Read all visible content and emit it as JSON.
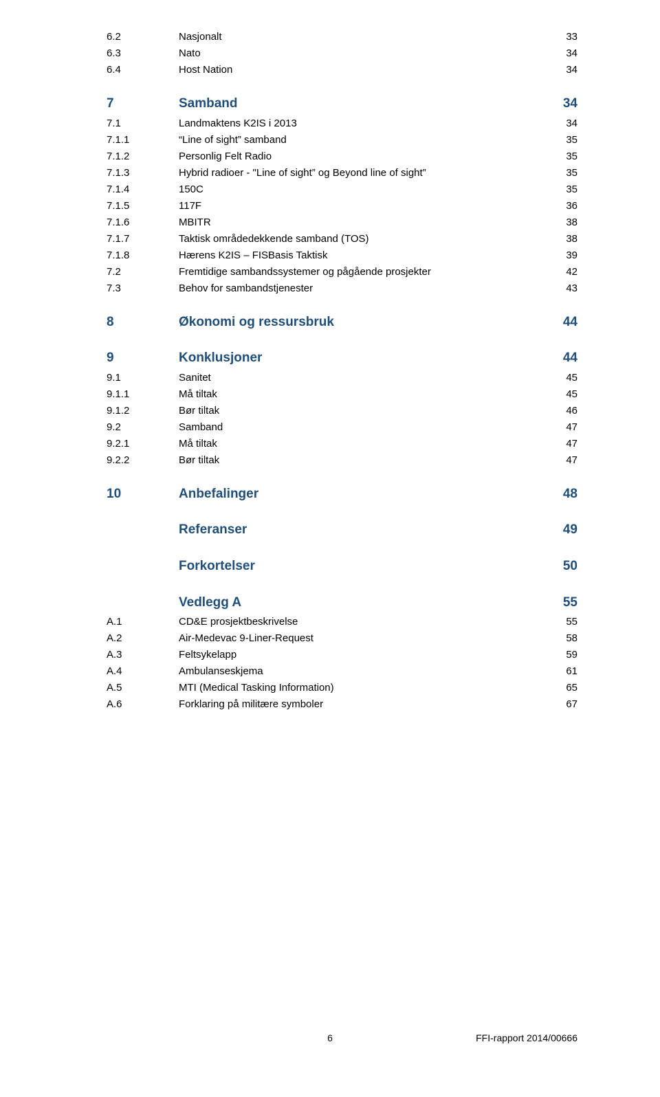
{
  "colors": {
    "heading": "#1f4e79",
    "body": "#000000",
    "background": "#ffffff"
  },
  "typography": {
    "family": "Arial",
    "heading_size_pt": 14,
    "body_size_pt": 11,
    "heading_weight": "bold",
    "body_weight": "normal"
  },
  "toc": [
    {
      "level": 2,
      "num": "6.2",
      "title": "Nasjonalt",
      "page": "33"
    },
    {
      "level": 2,
      "num": "6.3",
      "title": "Nato",
      "page": "34"
    },
    {
      "level": 2,
      "num": "6.4",
      "title": "Host Nation",
      "page": "34"
    },
    {
      "level": 1,
      "num": "7",
      "title": "Samband",
      "page": "34"
    },
    {
      "level": 2,
      "num": "7.1",
      "title": "Landmaktens K2IS i 2013",
      "page": "34"
    },
    {
      "level": 3,
      "num": "7.1.1",
      "title": "“Line of sight” samband",
      "page": "35"
    },
    {
      "level": 3,
      "num": "7.1.2",
      "title": "Personlig Felt Radio",
      "page": "35"
    },
    {
      "level": 3,
      "num": "7.1.3",
      "title": "Hybrid radioer - \"Line of sight” og Beyond line of sight”",
      "page": "35"
    },
    {
      "level": 3,
      "num": "7.1.4",
      "title": "150C",
      "page": "35"
    },
    {
      "level": 3,
      "num": "7.1.5",
      "title": "117F",
      "page": "36"
    },
    {
      "level": 3,
      "num": "7.1.6",
      "title": "MBITR",
      "page": "38"
    },
    {
      "level": 3,
      "num": "7.1.7",
      "title": "Taktisk områdedekkende samband (TOS)",
      "page": "38"
    },
    {
      "level": 3,
      "num": "7.1.8",
      "title": "Hærens K2IS – FISBasis Taktisk",
      "page": "39"
    },
    {
      "level": 2,
      "num": "7.2",
      "title": "Fremtidige sambandssystemer og pågående prosjekter",
      "page": "42"
    },
    {
      "level": 2,
      "num": "7.3",
      "title": "Behov for sambandstjenester",
      "page": "43"
    },
    {
      "level": 1,
      "num": "8",
      "title": "Økonomi og ressursbruk",
      "page": "44"
    },
    {
      "level": 1,
      "num": "9",
      "title": "Konklusjoner",
      "page": "44"
    },
    {
      "level": 2,
      "num": "9.1",
      "title": "Sanitet",
      "page": "45"
    },
    {
      "level": 3,
      "num": "9.1.1",
      "title": "Må tiltak",
      "page": "45"
    },
    {
      "level": 3,
      "num": "9.1.2",
      "title": "Bør tiltak",
      "page": "46"
    },
    {
      "level": 2,
      "num": "9.2",
      "title": "Samband",
      "page": "47"
    },
    {
      "level": 3,
      "num": "9.2.1",
      "title": "Må tiltak",
      "page": "47"
    },
    {
      "level": 3,
      "num": "9.2.2",
      "title": "Bør tiltak",
      "page": "47"
    },
    {
      "level": 1,
      "num": "10",
      "title": "Anbefalinger",
      "page": "48"
    },
    {
      "level": 1,
      "num": "",
      "title": "Referanser",
      "page": "49"
    },
    {
      "level": 1,
      "num": "",
      "title": "Forkortelser",
      "page": "50"
    },
    {
      "level": 1,
      "num": "",
      "title": "Vedlegg A",
      "page": "55"
    },
    {
      "level": 2,
      "num": "A.1",
      "title": "CD&E prosjektbeskrivelse",
      "page": "55"
    },
    {
      "level": 2,
      "num": "A.2",
      "title": "Air-Medevac 9-Liner-Request",
      "page": "58"
    },
    {
      "level": 2,
      "num": "A.3",
      "title": "Feltsykelapp",
      "page": "59"
    },
    {
      "level": 2,
      "num": "A.4",
      "title": "Ambulanseskjema",
      "page": "61"
    },
    {
      "level": 2,
      "num": "A.5",
      "title": "MTI (Medical Tasking Information)",
      "page": "65"
    },
    {
      "level": 2,
      "num": "A.6",
      "title": "Forklaring på militære symboler",
      "page": "67"
    }
  ],
  "footer": {
    "page_num": "6",
    "report_id": "FFI-rapport 2014/00666"
  }
}
